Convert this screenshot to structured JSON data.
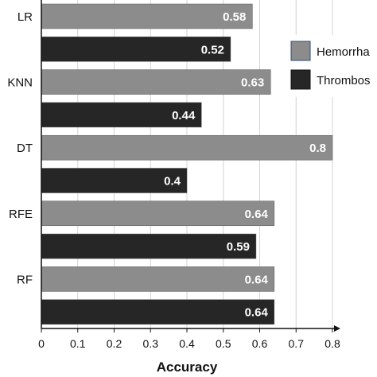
{
  "chart_data": {
    "type": "bar",
    "orientation": "horizontal",
    "title": "",
    "xlabel": "Accuracy",
    "ylabel": "",
    "xlim": [
      0,
      0.8
    ],
    "x_ticks": [
      "0",
      "0.1",
      "0.2",
      "0.3",
      "0.4",
      "0.5",
      "0.6",
      "0.7",
      "0.8"
    ],
    "grid": "vertical",
    "legend_position": "top-right",
    "categories": [
      "LR",
      "KNN",
      "DT",
      "RFE",
      "RF"
    ],
    "series": [
      {
        "name": "Hemorrha",
        "color": "#8c8c8c",
        "values": [
          0.58,
          0.63,
          0.8,
          0.64,
          0.64
        ],
        "labels": [
          "0.58",
          "0.63",
          "0.8",
          "0.64",
          "0.64"
        ]
      },
      {
        "name": "Thrombos",
        "color": "#262626",
        "values": [
          0.52,
          0.44,
          0.4,
          0.59,
          0.64
        ],
        "labels": [
          "0.52",
          "0.44",
          "0.4",
          "0.59",
          "0.64"
        ]
      }
    ]
  }
}
